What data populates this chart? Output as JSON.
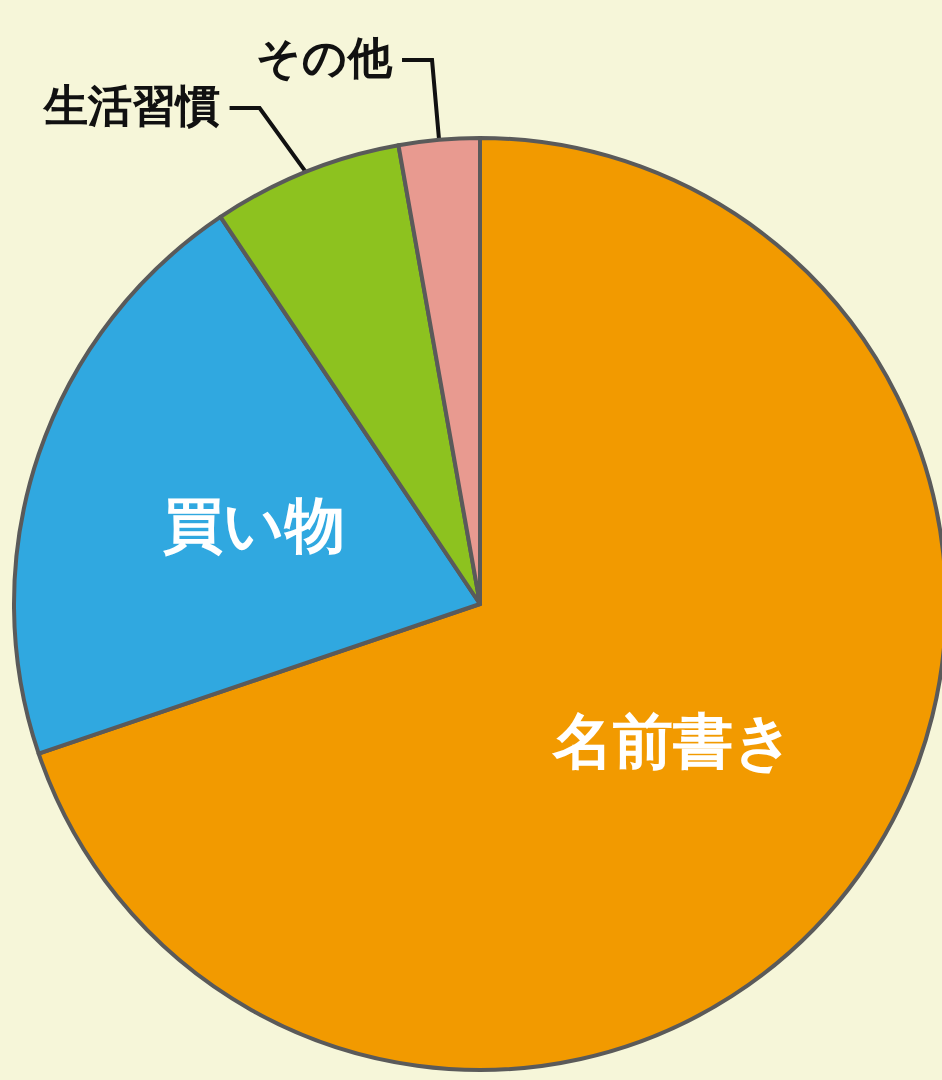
{
  "chart_data": {
    "type": "pie",
    "categories": [
      "名前書き",
      "買い物",
      "生活習慣",
      "その他"
    ],
    "values": [
      69.8,
      20.8,
      6.6,
      2.8
    ],
    "colors": [
      "#f29a00",
      "#30a8e0",
      "#8dc21f",
      "#e89a90"
    ],
    "legend": false
  }
}
